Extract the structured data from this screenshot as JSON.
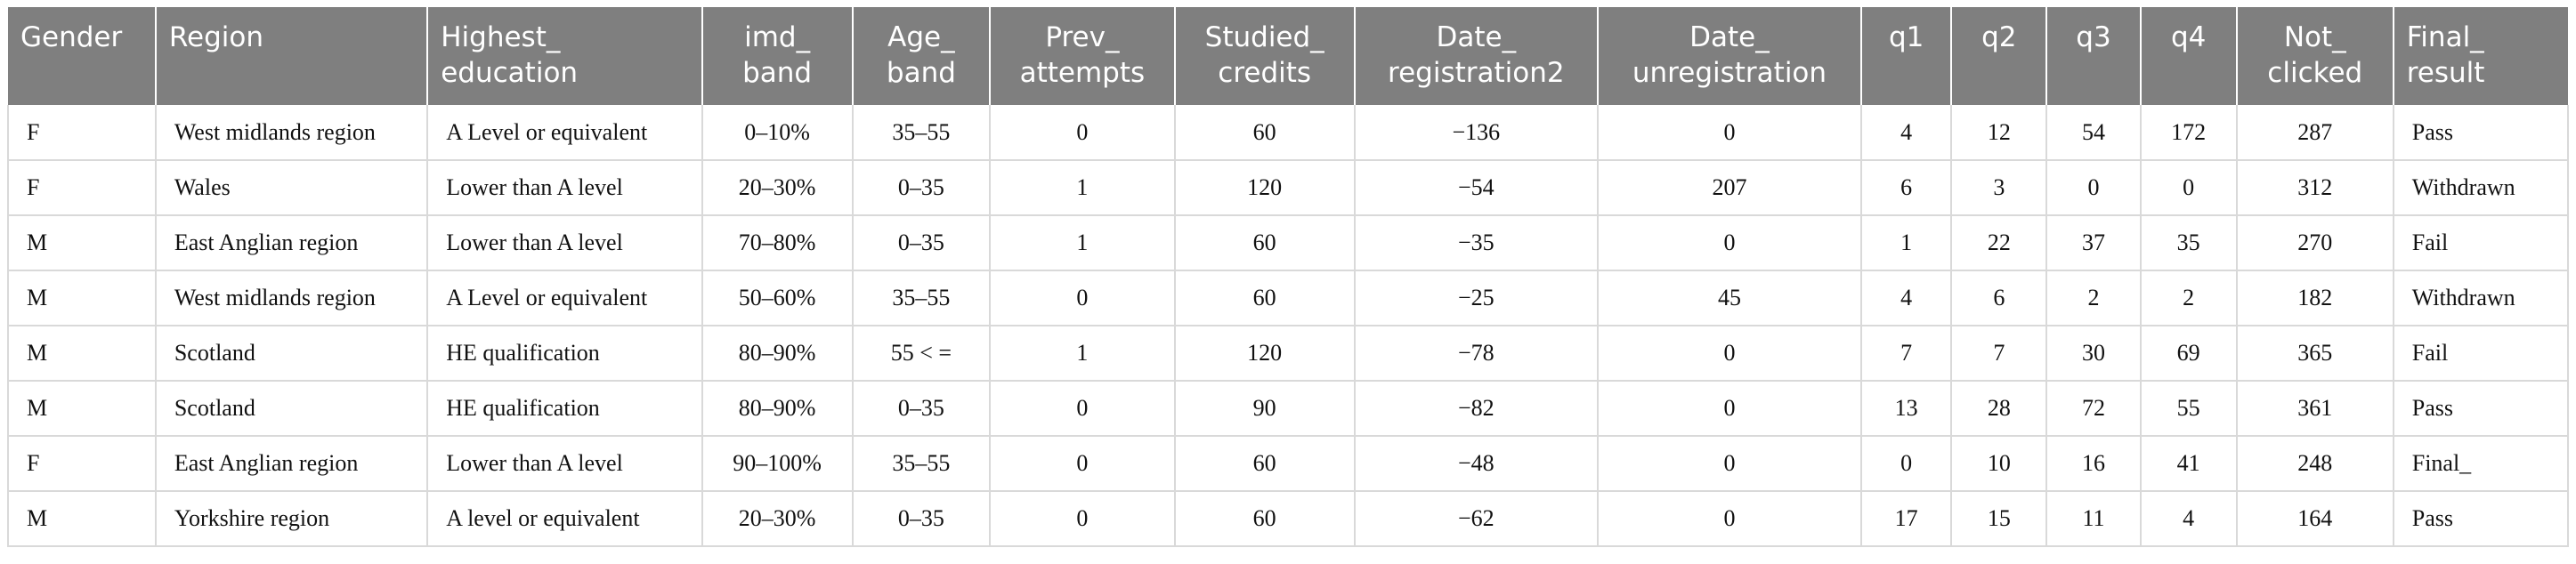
{
  "table": {
    "columns": [
      "Gender",
      "Region",
      "Highest_\neducation",
      "imd_\nband",
      "Age_\nband",
      "Prev_\nattempts",
      "Studied_\ncredits",
      "Date_\nregistration2",
      "Date_\nunregistration",
      "q1",
      "q2",
      "q3",
      "q4",
      "Not_\nclicked",
      "Final_\nresult"
    ],
    "rows": [
      [
        "F",
        "West midlands region",
        "A Level or equivalent",
        "0–10%",
        "35–55",
        "0",
        "60",
        "−136",
        "0",
        "4",
        "12",
        "54",
        "172",
        "287",
        "Pass"
      ],
      [
        "F",
        "Wales",
        "Lower than A level",
        "20–30%",
        "0–35",
        "1",
        "120",
        "−54",
        "207",
        "6",
        "3",
        "0",
        "0",
        "312",
        "Withdrawn"
      ],
      [
        "M",
        "East Anglian region",
        "Lower than A level",
        "70–80%",
        "0–35",
        "1",
        "60",
        "−35",
        "0",
        "1",
        "22",
        "37",
        "35",
        "270",
        "Fail"
      ],
      [
        "M",
        "West midlands region",
        "A Level or equivalent",
        "50–60%",
        "35–55",
        "0",
        "60",
        "−25",
        "45",
        "4",
        "6",
        "2",
        "2",
        "182",
        "Withdrawn"
      ],
      [
        "M",
        "Scotland",
        "HE qualification",
        "80–90%",
        "55 < =",
        "1",
        "120",
        "−78",
        "0",
        "7",
        "7",
        "30",
        "69",
        "365",
        "Fail"
      ],
      [
        "M",
        "Scotland",
        "HE qualification",
        "80–90%",
        "0–35",
        "0",
        "90",
        "−82",
        "0",
        "13",
        "28",
        "72",
        "55",
        "361",
        "Pass"
      ],
      [
        "F",
        "East Anglian region",
        "Lower than A level",
        "90–100%",
        "35–55",
        "0",
        "60",
        "−48",
        "0",
        "0",
        "10",
        "16",
        "41",
        "248",
        "Final_"
      ],
      [
        "M",
        "Yorkshire region",
        "A level or equivalent",
        "20–30%",
        "0–35",
        "0",
        "60",
        "−62",
        "0",
        "17",
        "15",
        "11",
        "4",
        "164",
        "Pass"
      ]
    ]
  }
}
